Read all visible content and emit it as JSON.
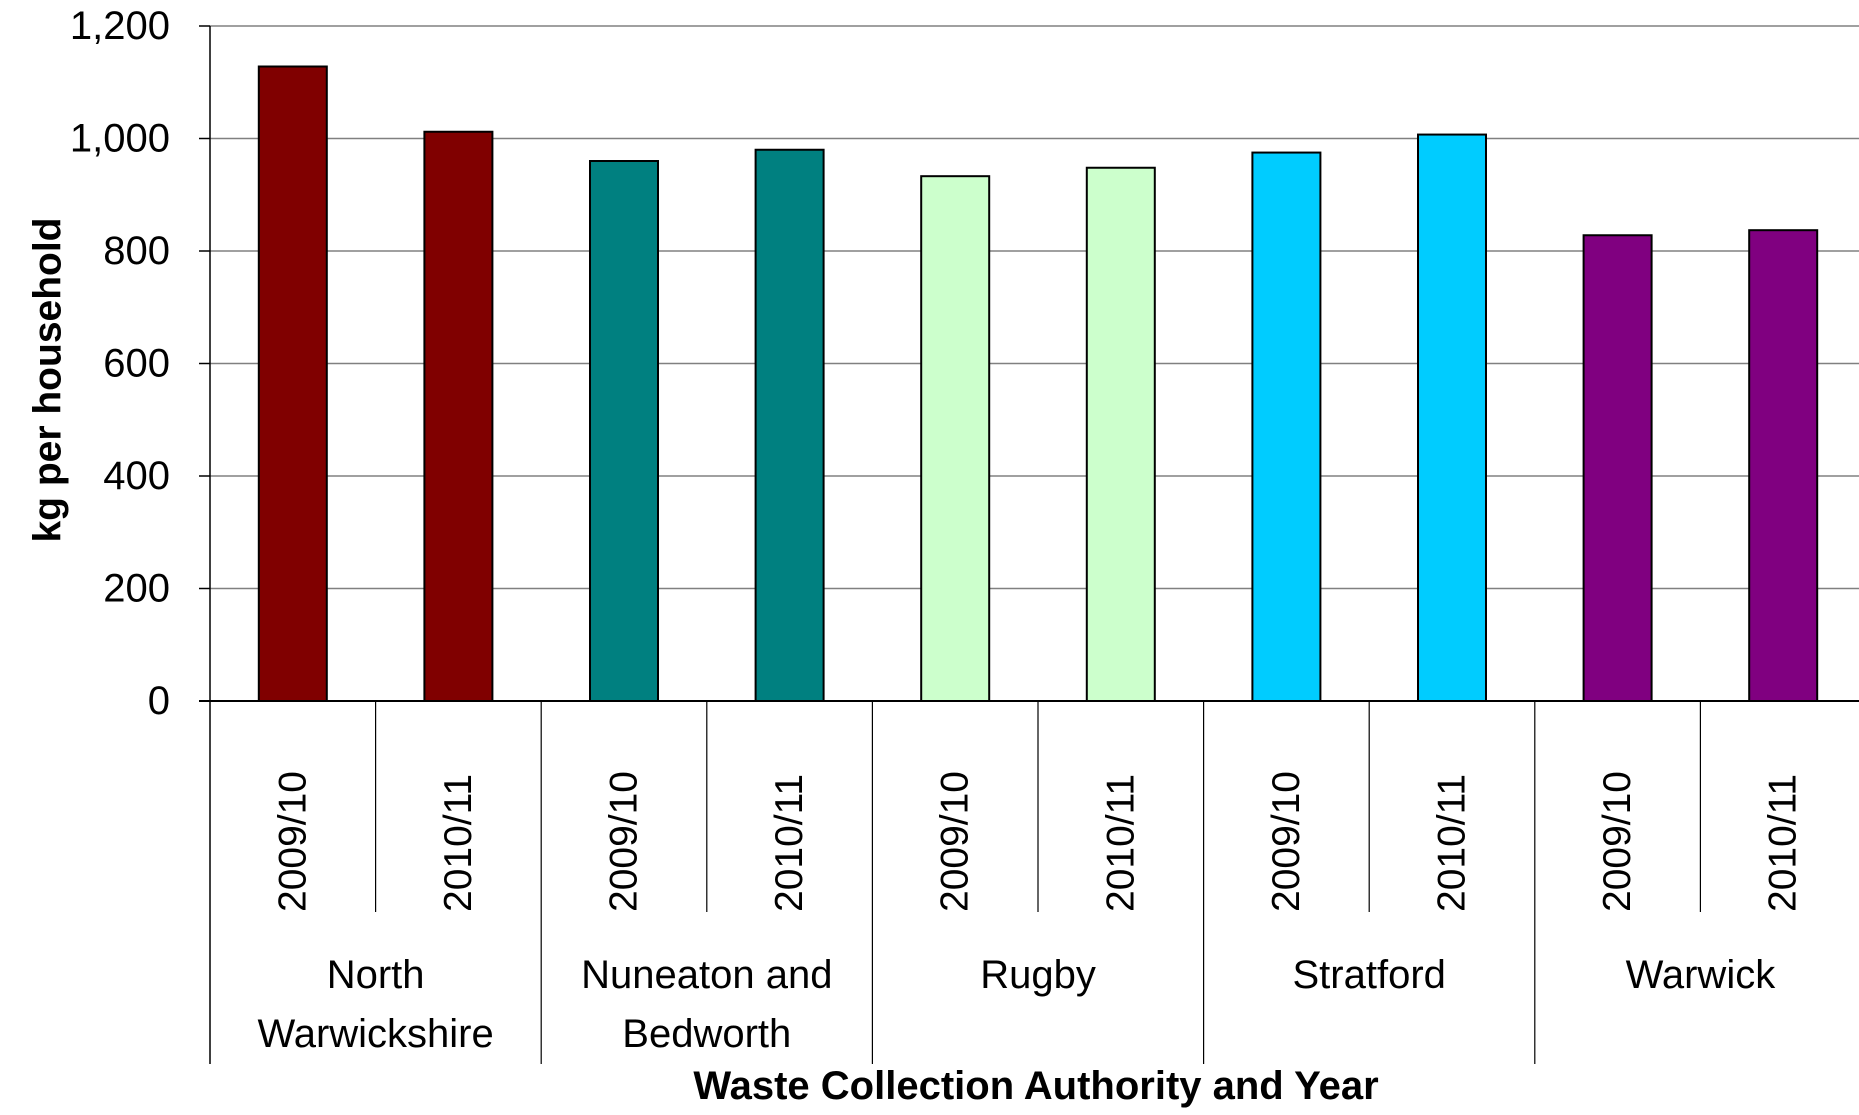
{
  "chart_data": {
    "type": "bar",
    "title": "",
    "xlabel": "Waste Collection Authority and Year",
    "ylabel": "kg per household",
    "ylim": [
      0,
      1200
    ],
    "yticks": [
      0,
      200,
      400,
      600,
      800,
      1000,
      1200
    ],
    "ytick_labels": [
      "0",
      "200",
      "400",
      "600",
      "800",
      "1,000",
      "1,200"
    ],
    "grid": true,
    "groups": [
      {
        "label": "North Warwickshire",
        "label_lines": [
          "North",
          "Warwickshire"
        ],
        "color": "#800000",
        "bars": [
          {
            "category": "2009/10",
            "value": 1128
          },
          {
            "category": "2010/11",
            "value": 1012
          }
        ]
      },
      {
        "label": "Nuneaton and Bedworth",
        "label_lines": [
          "Nuneaton and",
          "Bedworth"
        ],
        "color": "#008080",
        "bars": [
          {
            "category": "2009/10",
            "value": 960
          },
          {
            "category": "2010/11",
            "value": 980
          }
        ]
      },
      {
        "label": "Rugby",
        "label_lines": [
          "Rugby"
        ],
        "color": "#CCFFCC",
        "bars": [
          {
            "category": "2009/10",
            "value": 933
          },
          {
            "category": "2010/11",
            "value": 948
          }
        ]
      },
      {
        "label": "Stratford",
        "label_lines": [
          "Stratford"
        ],
        "color": "#00CCFF",
        "bars": [
          {
            "category": "2009/10",
            "value": 975
          },
          {
            "category": "2010/11",
            "value": 1007
          }
        ]
      },
      {
        "label": "Warwick",
        "label_lines": [
          "Warwick"
        ],
        "color": "#800080",
        "bars": [
          {
            "category": "2009/10",
            "value": 828
          },
          {
            "category": "2010/11",
            "value": 837
          }
        ]
      }
    ]
  }
}
